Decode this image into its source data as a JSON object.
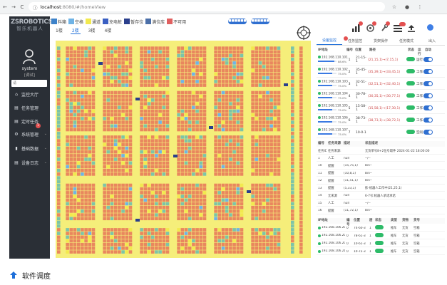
{
  "browser": {
    "url_host": "localhost",
    "url_path": ":8080/#/homeView",
    "nav_back": "←",
    "nav_forward": "→",
    "nav_reload": "C",
    "info": "ⓘ"
  },
  "sidebar": {
    "logo_en": "ZSROBOTICS",
    "logo_cn": "智乐机器人",
    "user_name": "system",
    "user_role": "[调试]",
    "search_placeholder": "请",
    "items": [
      {
        "icon": "home-icon",
        "label": "监控大厅"
      },
      {
        "icon": "doc-icon",
        "label": "任务管理"
      },
      {
        "icon": "doc-icon",
        "label": "定时任务"
      },
      {
        "icon": "gear-icon",
        "label": "系统管理"
      },
      {
        "icon": "book-icon",
        "label": "基础数据"
      },
      {
        "icon": "doc-icon",
        "label": "设备日志"
      }
    ],
    "badge": "1"
  },
  "toolbar": {
    "legend": [
      {
        "label": "料箱",
        "color": "#3d82c9"
      },
      {
        "label": "空格",
        "color": "#6fb3e6"
      },
      {
        "label": "通道",
        "color": "#f2e94e"
      },
      {
        "label": "充电桩",
        "color": "#3a5fc2"
      },
      {
        "label": "暂存位",
        "color": "#2a3f8c"
      },
      {
        "label": "满位库",
        "color": "#4b6fa8"
      },
      {
        "label": "不可用",
        "color": "#e06060"
      }
    ],
    "floors": [
      "1楼",
      "2楼",
      "3楼",
      "4楼"
    ],
    "active_floor": "2楼",
    "pill_a": "■■■■■■",
    "pill_b": "■■■■■■"
  },
  "right_panel": {
    "tabs": [
      "设备监控",
      "任务监控",
      "货架操作",
      "任务模式",
      "出入"
    ],
    "robot_headers": [
      "IP地址",
      "编号",
      "位置",
      "路径",
      "状态",
      "运行",
      "自动"
    ],
    "robots": [
      {
        "ip": "192.168.110.101",
        "pct": "88.6%",
        "fill": 0.886,
        "num": "1",
        "pos": "21-15-1",
        "path": "(21,15,1)→(7,15,1)",
        "run": "运行"
      },
      {
        "ip": "192.168.110.102",
        "pct": "75.0%",
        "fill": 0.75,
        "num": "2",
        "pos": "35-45-1",
        "path": "(35,39,1)→(33,45,1)",
        "run": "工作"
      },
      {
        "ip": "192.168.110.103",
        "pct": "75.0%",
        "fill": 0.75,
        "num": "3",
        "pos": "32-51-1",
        "path": "(32,51,1)→(32,40,1)",
        "run": "工作"
      },
      {
        "ip": "192.168.110.104",
        "pct": "75.0%",
        "fill": 0.75,
        "num": "4",
        "pos": "30-78-1",
        "path": "(30,35,1)→(30,77,1)",
        "run": "工作"
      },
      {
        "ip": "192.168.110.105",
        "pct": "75.0%",
        "fill": 0.75,
        "num": "5",
        "pos": "15-58-1",
        "path": "(15,58,1)→(17,30,1)",
        "run": "工作"
      },
      {
        "ip": "192.168.110.106",
        "pct": "75.0%",
        "fill": 0.75,
        "num": "6",
        "pos": "38-73-1",
        "path": "(38,73,1)→(38,72,1)",
        "run": "工作"
      },
      {
        "ip": "192.168.110.107",
        "pct": "75.0%",
        "fill": 0.75,
        "num": "7",
        "pos": "10-0-1",
        "path": "",
        "run": "空闲"
      }
    ],
    "task_headers": [
      "编号",
      "任务来源",
      "描述",
      "状态描述"
    ],
    "tasks": [
      [
        "任务ID:",
        "任务来源:",
        "",
        "无货单号8+2位号取件 2024-01-22 18:00:00"
      ],
      [
        "1",
        "人工",
        "null",
        "--/--"
      ],
      [
        "10",
        "提醒",
        "(15,75,1)",
        "Bin--"
      ],
      [
        "11",
        "提醒",
        "(10,8,1)",
        "Bin--"
      ],
      [
        "12",
        "提醒",
        "(11,51,1)",
        "Bin--"
      ],
      [
        "13",
        "提醒",
        "(5,33,1)",
        "拣-机器人工作中(21,25,1)"
      ],
      [
        "14",
        "无来源",
        "null",
        "6-7号:机器人承诺承诺"
      ],
      [
        "15",
        "人工",
        "null",
        "--/--"
      ],
      [
        "16",
        "提醒",
        "(11,72,1)",
        "Bin--"
      ]
    ],
    "device_headers": [
      "IP地址",
      "编号",
      "位置",
      "层",
      "状态",
      "类型",
      "货物",
      "货号"
    ],
    "devices": [
      [
        "192.168.106.207",
        "0",
        "74-60-3",
        "1",
        "",
        "推车",
        "无货",
        "空箱"
      ],
      [
        "192.168.106.208",
        "0",
        "78-61-3",
        "1",
        "",
        "推车",
        "无货",
        "空箱"
      ],
      [
        "192.168.106.209",
        "0",
        "10-61-3",
        "1",
        "",
        "推车",
        "无货",
        "空箱"
      ],
      [
        "192.168.106.210",
        "0",
        "10-72-3",
        "1",
        "",
        "推车",
        "无货",
        "空箱"
      ]
    ]
  },
  "caption": "软件调度"
}
